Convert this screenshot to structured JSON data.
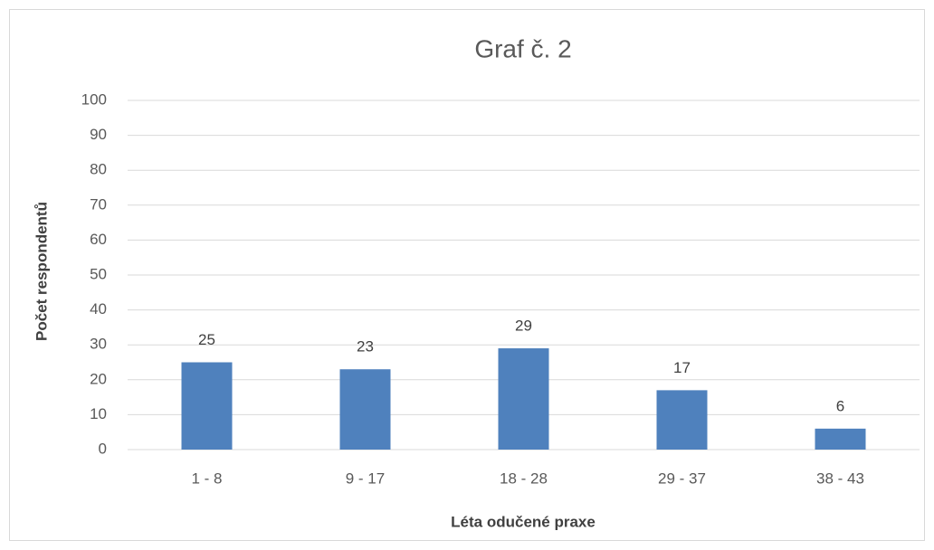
{
  "chart_data": {
    "type": "bar",
    "title": "Graf č. 2",
    "y_label": "Počet respondentů",
    "x_label": "Léta odučené praxe",
    "categories": [
      "1 - 8",
      "9 - 17",
      "18 - 28",
      "29 - 37",
      "38 - 43"
    ],
    "values": [
      25,
      23,
      29,
      17,
      6
    ],
    "color": "#4f81bd",
    "ylim": [
      0,
      100
    ],
    "yticks": [
      0,
      10,
      20,
      30,
      40,
      50,
      60,
      70,
      80,
      90,
      100
    ],
    "grid": true
  }
}
